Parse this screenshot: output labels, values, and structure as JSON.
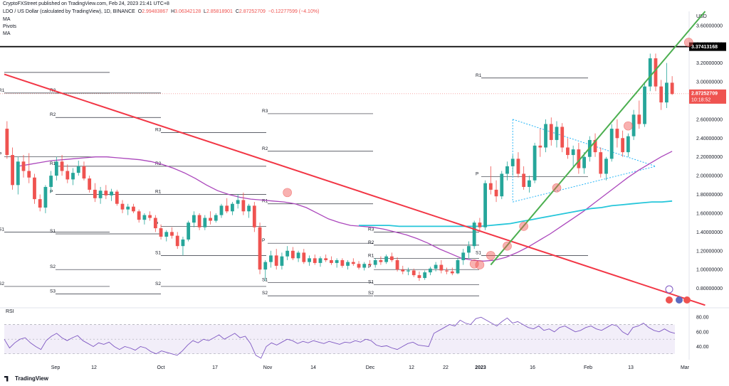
{
  "header": {
    "publisher": "CryptoFXStreet published on TradingView.com, Feb 24, 2023 21:41 UTC+8",
    "symbol": "LDO / US Dollar (calculated by TradingView), 1D, BINANCE",
    "ohlc": {
      "open_label": "O",
      "open": "2.99483867",
      "high_label": "H",
      "high": "3.06342128",
      "low_label": "L",
      "low": "2.85818901",
      "close_label": "C",
      "close": "2.87252709",
      "change": "−0.12277599 (−4.10%)"
    },
    "indicators": [
      "MA",
      "Pivots",
      "MA"
    ]
  },
  "footer": {
    "brand": "TradingView"
  },
  "chart_data": {
    "type": "candlestick",
    "currency_label": "USD",
    "y_axis_labels": [
      "3.60000000",
      "3.40000000",
      "3.20000000",
      "3.00000000",
      "2.80000000",
      "2.60000000",
      "2.40000000",
      "2.20000000",
      "2.00000000",
      "1.80000000",
      "1.60000000",
      "1.40000000",
      "1.20000000",
      "1.00000000",
      "0.80000000"
    ],
    "ylim": [
      0.6,
      3.75
    ],
    "x_axis_labels": [
      "Sep",
      "12",
      "Oct",
      "17",
      "Nov",
      "14",
      "Dec",
      "12",
      "22",
      "2023",
      "16",
      "Feb",
      "13",
      "Mar"
    ],
    "resistance_label": "3.37413168",
    "resistance_value": 3.37413168,
    "last_price_label": "2.87252709",
    "countdown": "10:18:52",
    "last_price": 2.87252709,
    "candles": [
      {
        "o": 2.5,
        "h": 2.58,
        "l": 2.18,
        "c": 2.22
      },
      {
        "o": 2.22,
        "h": 2.3,
        "l": 1.85,
        "c": 1.9
      },
      {
        "o": 1.9,
        "h": 2.2,
        "l": 1.8,
        "c": 2.15
      },
      {
        "o": 2.15,
        "h": 2.22,
        "l": 1.98,
        "c": 2.05
      },
      {
        "o": 2.05,
        "h": 2.24,
        "l": 1.92,
        "c": 1.98
      },
      {
        "o": 1.98,
        "h": 2.02,
        "l": 1.7,
        "c": 1.75
      },
      {
        "o": 1.75,
        "h": 1.8,
        "l": 1.62,
        "c": 1.66
      },
      {
        "o": 1.66,
        "h": 1.9,
        "l": 1.6,
        "c": 1.88
      },
      {
        "o": 1.88,
        "h": 2.05,
        "l": 1.82,
        "c": 2.0
      },
      {
        "o": 2.0,
        "h": 2.2,
        "l": 1.95,
        "c": 2.15
      },
      {
        "o": 2.15,
        "h": 2.22,
        "l": 2.0,
        "c": 2.05
      },
      {
        "o": 2.05,
        "h": 2.12,
        "l": 1.92,
        "c": 1.96
      },
      {
        "o": 1.96,
        "h": 2.08,
        "l": 1.9,
        "c": 2.03
      },
      {
        "o": 2.03,
        "h": 2.16,
        "l": 2.0,
        "c": 2.1
      },
      {
        "o": 2.1,
        "h": 2.15,
        "l": 1.95,
        "c": 1.97
      },
      {
        "o": 1.97,
        "h": 2.0,
        "l": 1.82,
        "c": 1.85
      },
      {
        "o": 1.85,
        "h": 1.92,
        "l": 1.72,
        "c": 1.76
      },
      {
        "o": 1.76,
        "h": 1.88,
        "l": 1.7,
        "c": 1.84
      },
      {
        "o": 1.84,
        "h": 1.9,
        "l": 1.75,
        "c": 1.79
      },
      {
        "o": 1.79,
        "h": 1.86,
        "l": 1.73,
        "c": 1.83
      },
      {
        "o": 1.83,
        "h": 1.85,
        "l": 1.68,
        "c": 1.7
      },
      {
        "o": 1.7,
        "h": 1.74,
        "l": 1.6,
        "c": 1.64
      },
      {
        "o": 1.64,
        "h": 1.7,
        "l": 1.58,
        "c": 1.67
      },
      {
        "o": 1.67,
        "h": 1.7,
        "l": 1.6,
        "c": 1.62
      },
      {
        "o": 1.62,
        "h": 1.64,
        "l": 1.5,
        "c": 1.53
      },
      {
        "o": 1.53,
        "h": 1.6,
        "l": 1.48,
        "c": 1.58
      },
      {
        "o": 1.58,
        "h": 1.62,
        "l": 1.52,
        "c": 1.55
      },
      {
        "o": 1.55,
        "h": 1.58,
        "l": 1.4,
        "c": 1.44
      },
      {
        "o": 1.44,
        "h": 1.48,
        "l": 1.32,
        "c": 1.35
      },
      {
        "o": 1.35,
        "h": 1.42,
        "l": 1.3,
        "c": 1.4
      },
      {
        "o": 1.4,
        "h": 1.45,
        "l": 1.33,
        "c": 1.36
      },
      {
        "o": 1.36,
        "h": 1.4,
        "l": 1.22,
        "c": 1.25
      },
      {
        "o": 1.25,
        "h": 1.35,
        "l": 1.15,
        "c": 1.32
      },
      {
        "o": 1.32,
        "h": 1.52,
        "l": 1.3,
        "c": 1.5
      },
      {
        "o": 1.5,
        "h": 1.62,
        "l": 1.45,
        "c": 1.58
      },
      {
        "o": 1.58,
        "h": 1.6,
        "l": 1.42,
        "c": 1.45
      },
      {
        "o": 1.45,
        "h": 1.58,
        "l": 1.42,
        "c": 1.55
      },
      {
        "o": 1.55,
        "h": 1.62,
        "l": 1.48,
        "c": 1.52
      },
      {
        "o": 1.52,
        "h": 1.6,
        "l": 1.5,
        "c": 1.58
      },
      {
        "o": 1.58,
        "h": 1.7,
        "l": 1.55,
        "c": 1.68
      },
      {
        "o": 1.68,
        "h": 1.76,
        "l": 1.6,
        "c": 1.62
      },
      {
        "o": 1.62,
        "h": 1.72,
        "l": 1.58,
        "c": 1.7
      },
      {
        "o": 1.7,
        "h": 1.8,
        "l": 1.65,
        "c": 1.74
      },
      {
        "o": 1.74,
        "h": 1.82,
        "l": 1.58,
        "c": 1.62
      },
      {
        "o": 1.62,
        "h": 1.7,
        "l": 1.55,
        "c": 1.68
      },
      {
        "o": 1.68,
        "h": 1.72,
        "l": 1.4,
        "c": 1.45
      },
      {
        "o": 1.45,
        "h": 1.5,
        "l": 0.95,
        "c": 1.0
      },
      {
        "o": 1.0,
        "h": 1.1,
        "l": 0.88,
        "c": 1.08
      },
      {
        "o": 1.08,
        "h": 1.2,
        "l": 1.02,
        "c": 1.15
      },
      {
        "o": 1.15,
        "h": 1.22,
        "l": 1.0,
        "c": 1.04
      },
      {
        "o": 1.04,
        "h": 1.18,
        "l": 1.0,
        "c": 1.14
      },
      {
        "o": 1.14,
        "h": 1.25,
        "l": 1.1,
        "c": 1.2
      },
      {
        "o": 1.2,
        "h": 1.24,
        "l": 1.1,
        "c": 1.12
      },
      {
        "o": 1.12,
        "h": 1.2,
        "l": 1.08,
        "c": 1.18
      },
      {
        "o": 1.18,
        "h": 1.22,
        "l": 1.06,
        "c": 1.08
      },
      {
        "o": 1.08,
        "h": 1.15,
        "l": 1.04,
        "c": 1.12
      },
      {
        "o": 1.12,
        "h": 1.16,
        "l": 1.05,
        "c": 1.07
      },
      {
        "o": 1.07,
        "h": 1.14,
        "l": 1.03,
        "c": 1.12
      },
      {
        "o": 1.12,
        "h": 1.16,
        "l": 1.08,
        "c": 1.1
      },
      {
        "o": 1.1,
        "h": 1.14,
        "l": 1.05,
        "c": 1.07
      },
      {
        "o": 1.07,
        "h": 1.12,
        "l": 1.02,
        "c": 1.1
      },
      {
        "o": 1.1,
        "h": 1.12,
        "l": 1.02,
        "c": 1.04
      },
      {
        "o": 1.04,
        "h": 1.1,
        "l": 1.0,
        "c": 1.08
      },
      {
        "o": 1.08,
        "h": 1.12,
        "l": 1.04,
        "c": 1.06
      },
      {
        "o": 1.06,
        "h": 1.09,
        "l": 1.0,
        "c": 1.02
      },
      {
        "o": 1.02,
        "h": 1.08,
        "l": 0.99,
        "c": 1.06
      },
      {
        "o": 1.06,
        "h": 1.1,
        "l": 1.03,
        "c": 1.05
      },
      {
        "o": 1.05,
        "h": 1.12,
        "l": 1.02,
        "c": 1.1
      },
      {
        "o": 1.1,
        "h": 1.14,
        "l": 1.05,
        "c": 1.08
      },
      {
        "o": 1.08,
        "h": 1.16,
        "l": 1.06,
        "c": 1.14
      },
      {
        "o": 1.14,
        "h": 1.18,
        "l": 1.08,
        "c": 1.1
      },
      {
        "o": 1.1,
        "h": 1.13,
        "l": 0.98,
        "c": 1.0
      },
      {
        "o": 1.0,
        "h": 1.04,
        "l": 0.95,
        "c": 0.98
      },
      {
        "o": 0.98,
        "h": 1.02,
        "l": 0.94,
        "c": 0.99
      },
      {
        "o": 0.99,
        "h": 1.01,
        "l": 0.92,
        "c": 0.94
      },
      {
        "o": 0.94,
        "h": 0.98,
        "l": 0.88,
        "c": 0.91
      },
      {
        "o": 0.91,
        "h": 0.99,
        "l": 0.89,
        "c": 0.97
      },
      {
        "o": 0.97,
        "h": 1.03,
        "l": 0.94,
        "c": 1.01
      },
      {
        "o": 1.01,
        "h": 1.08,
        "l": 0.98,
        "c": 1.05
      },
      {
        "o": 1.05,
        "h": 1.1,
        "l": 0.96,
        "c": 0.99
      },
      {
        "o": 0.99,
        "h": 1.02,
        "l": 0.95,
        "c": 0.98
      },
      {
        "o": 0.98,
        "h": 1.02,
        "l": 0.94,
        "c": 0.96
      },
      {
        "o": 0.96,
        "h": 1.12,
        "l": 0.95,
        "c": 1.1
      },
      {
        "o": 1.1,
        "h": 1.22,
        "l": 1.05,
        "c": 1.18
      },
      {
        "o": 1.18,
        "h": 1.3,
        "l": 1.12,
        "c": 1.25
      },
      {
        "o": 1.25,
        "h": 1.52,
        "l": 1.22,
        "c": 1.5
      },
      {
        "o": 1.5,
        "h": 1.55,
        "l": 1.4,
        "c": 1.45
      },
      {
        "o": 1.45,
        "h": 1.95,
        "l": 1.42,
        "c": 1.92
      },
      {
        "o": 1.92,
        "h": 2.1,
        "l": 1.8,
        "c": 1.85
      },
      {
        "o": 1.85,
        "h": 1.95,
        "l": 1.72,
        "c": 1.78
      },
      {
        "o": 1.78,
        "h": 2.05,
        "l": 1.75,
        "c": 2.02
      },
      {
        "o": 2.02,
        "h": 2.15,
        "l": 1.95,
        "c": 2.1
      },
      {
        "o": 2.1,
        "h": 2.22,
        "l": 2.0,
        "c": 2.18
      },
      {
        "o": 2.18,
        "h": 2.25,
        "l": 1.98,
        "c": 2.02
      },
      {
        "o": 2.02,
        "h": 2.1,
        "l": 1.85,
        "c": 1.88
      },
      {
        "o": 1.88,
        "h": 2.0,
        "l": 1.82,
        "c": 1.95
      },
      {
        "o": 1.95,
        "h": 2.35,
        "l": 1.92,
        "c": 2.32
      },
      {
        "o": 2.32,
        "h": 2.5,
        "l": 2.2,
        "c": 2.3
      },
      {
        "o": 2.3,
        "h": 2.6,
        "l": 2.25,
        "c": 2.55
      },
      {
        "o": 2.55,
        "h": 2.62,
        "l": 2.32,
        "c": 2.38
      },
      {
        "o": 2.38,
        "h": 2.58,
        "l": 2.3,
        "c": 2.52
      },
      {
        "o": 2.52,
        "h": 2.56,
        "l": 2.25,
        "c": 2.3
      },
      {
        "o": 2.3,
        "h": 2.4,
        "l": 2.18,
        "c": 2.22
      },
      {
        "o": 2.22,
        "h": 2.32,
        "l": 2.1,
        "c": 2.28
      },
      {
        "o": 2.28,
        "h": 2.35,
        "l": 2.02,
        "c": 2.08
      },
      {
        "o": 2.08,
        "h": 2.25,
        "l": 2.02,
        "c": 2.2
      },
      {
        "o": 2.2,
        "h": 2.42,
        "l": 2.15,
        "c": 2.38
      },
      {
        "o": 2.38,
        "h": 2.45,
        "l": 2.2,
        "c": 2.25
      },
      {
        "o": 2.25,
        "h": 2.3,
        "l": 1.98,
        "c": 2.02
      },
      {
        "o": 2.02,
        "h": 2.2,
        "l": 1.95,
        "c": 2.18
      },
      {
        "o": 2.18,
        "h": 2.55,
        "l": 2.15,
        "c": 2.5
      },
      {
        "o": 2.5,
        "h": 2.6,
        "l": 2.3,
        "c": 2.4
      },
      {
        "o": 2.4,
        "h": 2.48,
        "l": 2.2,
        "c": 2.25
      },
      {
        "o": 2.25,
        "h": 2.45,
        "l": 2.2,
        "c": 2.42
      },
      {
        "o": 2.42,
        "h": 2.7,
        "l": 2.38,
        "c": 2.65
      },
      {
        "o": 2.65,
        "h": 2.8,
        "l": 2.5,
        "c": 2.55
      },
      {
        "o": 2.55,
        "h": 3.0,
        "l": 2.52,
        "c": 2.95
      },
      {
        "o": 2.95,
        "h": 3.3,
        "l": 2.9,
        "c": 3.25
      },
      {
        "o": 3.25,
        "h": 3.3,
        "l": 2.9,
        "c": 2.95
      },
      {
        "o": 2.95,
        "h": 3.02,
        "l": 2.7,
        "c": 2.78
      },
      {
        "o": 2.78,
        "h": 3.2,
        "l": 2.72,
        "c": 2.99
      },
      {
        "o": 2.99,
        "h": 3.06,
        "l": 2.86,
        "c": 2.87
      }
    ],
    "ma_purple": [
      2.1,
      2.12,
      2.14,
      2.16,
      2.17,
      2.18,
      2.19,
      2.2,
      2.2,
      2.19,
      2.18,
      2.17,
      2.15,
      2.12,
      2.08,
      2.03,
      1.97,
      1.9,
      1.84,
      1.8,
      1.77,
      1.75,
      1.74,
      1.73,
      1.72,
      1.7,
      1.66,
      1.6,
      1.54,
      1.5,
      1.47,
      1.46,
      1.45,
      1.43,
      1.4,
      1.37,
      1.33,
      1.28,
      1.22,
      1.17,
      1.12,
      1.1,
      1.09,
      1.1,
      1.13,
      1.18,
      1.24,
      1.31,
      1.38,
      1.46,
      1.54,
      1.62,
      1.71,
      1.8,
      1.89,
      1.98,
      2.06,
      2.13,
      2.2,
      2.26
    ],
    "ma_teal": [
      1.47,
      1.47,
      1.47,
      1.47,
      1.46,
      1.46,
      1.46,
      1.46,
      1.46,
      1.46,
      1.46,
      1.46,
      1.46,
      1.47,
      1.48,
      1.49,
      1.51,
      1.53,
      1.55,
      1.57,
      1.59,
      1.61,
      1.63,
      1.65,
      1.66,
      1.68,
      1.69,
      1.7,
      1.71,
      1.72,
      1.72,
      1.73
    ],
    "red_trendline": [
      {
        "i": -1,
        "p": 3.08
      },
      {
        "i": 127,
        "p": 0.62
      }
    ],
    "green_trendline": [
      {
        "i": -1,
        "p": 1.05
      },
      {
        "i": 88,
        "p": 3.75
      }
    ],
    "triangle_upper": [
      {
        "i": -1,
        "p": 2.6
      },
      {
        "i": 27,
        "p": 2.1
      }
    ],
    "triangle_lower": [
      {
        "i": -1,
        "p": 1.72
      },
      {
        "i": 27,
        "p": 2.1
      }
    ],
    "pivot_groups": [
      {
        "levels": [
          {
            "label": "",
            "p": 3.1
          },
          {
            "label": "R1",
            "p": 2.88
          },
          {
            "label": "P",
            "p": 2.2
          },
          {
            "label": "S1",
            "p": 1.4
          },
          {
            "label": "S2",
            "p": 0.82
          }
        ]
      },
      {
        "levels": [
          {
            "label": "R3",
            "p": 2.88
          },
          {
            "label": "R2",
            "p": 2.62
          },
          {
            "label": "R1",
            "p": 2.1
          },
          {
            "label": "P",
            "p": 1.8
          },
          {
            "label": "S1",
            "p": 1.38
          },
          {
            "label": "S2",
            "p": 1.0
          },
          {
            "label": "S3",
            "p": 0.74
          }
        ]
      },
      {
        "levels": [
          {
            "label": "R3",
            "p": 2.46
          },
          {
            "label": "R2",
            "p": 2.1
          },
          {
            "label": "R1",
            "p": 1.8
          },
          {
            "label": "P",
            "p": 1.46
          },
          {
            "label": "S1",
            "p": 1.15
          },
          {
            "label": "S2",
            "p": 0.82
          }
        ]
      },
      {
        "levels": [
          {
            "label": "R3",
            "p": 2.66
          },
          {
            "label": "R2",
            "p": 2.26
          },
          {
            "label": "R1",
            "p": 1.7
          },
          {
            "label": "P",
            "p": 1.28
          },
          {
            "label": "S1",
            "p": 0.86
          },
          {
            "label": "S2",
            "p": 0.72
          }
        ]
      },
      {
        "levels": [
          {
            "label": "R3",
            "p": 1.4
          },
          {
            "label": "R2",
            "p": 1.26
          },
          {
            "label": "R1",
            "p": 1.12
          },
          {
            "label": "P",
            "p": 1.0
          },
          {
            "label": "S1",
            "p": 0.84
          },
          {
            "label": "S2",
            "p": 0.72
          }
        ]
      },
      {
        "levels": [
          {
            "label": "R1",
            "p": 3.04
          },
          {
            "label": "P",
            "p": 1.99
          },
          {
            "label": "S1",
            "p": 1.15
          }
        ]
      }
    ],
    "highlight_circles": [
      {
        "i": -1,
        "p": 1.82
      },
      {
        "i": -1,
        "p": 1.06
      },
      {
        "i": -1,
        "p": 1.05
      },
      {
        "i": -1,
        "p": 1.15
      },
      {
        "i": -1,
        "p": 1.25
      },
      {
        "i": -1,
        "p": 1.46
      },
      {
        "i": -1,
        "p": 1.87
      },
      {
        "i": -1,
        "p": 2.53
      },
      {
        "i": -1,
        "p": 3.42
      }
    ],
    "rsi": {
      "label": "RSI",
      "axis_labels": [
        "80.00",
        "60.00",
        "40.00"
      ],
      "band": [
        30,
        70
      ],
      "values": [
        50,
        38,
        45,
        50,
        52,
        45,
        40,
        36,
        48,
        54,
        58,
        52,
        48,
        52,
        55,
        48,
        44,
        40,
        45,
        43,
        46,
        40,
        36,
        40,
        38,
        35,
        40,
        38,
        33,
        30,
        34,
        32,
        30,
        28,
        34,
        42,
        48,
        45,
        50,
        48,
        52,
        56,
        50,
        54,
        58,
        52,
        54,
        44,
        28,
        24,
        40,
        45,
        42,
        46,
        50,
        48,
        44,
        47,
        45,
        48,
        46,
        44,
        47,
        45,
        43,
        46,
        45,
        48,
        46,
        50,
        48,
        42,
        40,
        41,
        38,
        36,
        40,
        44,
        46,
        42,
        41,
        40,
        58,
        62,
        66,
        70,
        68,
        76,
        72,
        70,
        78,
        80,
        76,
        72,
        68,
        74,
        79,
        72,
        74,
        70,
        66,
        64,
        68,
        62,
        64,
        60,
        66,
        68,
        64,
        60,
        62,
        66,
        68,
        64,
        62,
        66,
        70,
        68,
        60,
        56,
        66,
        68,
        72,
        66,
        62,
        60,
        64,
        60,
        58
      ]
    }
  }
}
